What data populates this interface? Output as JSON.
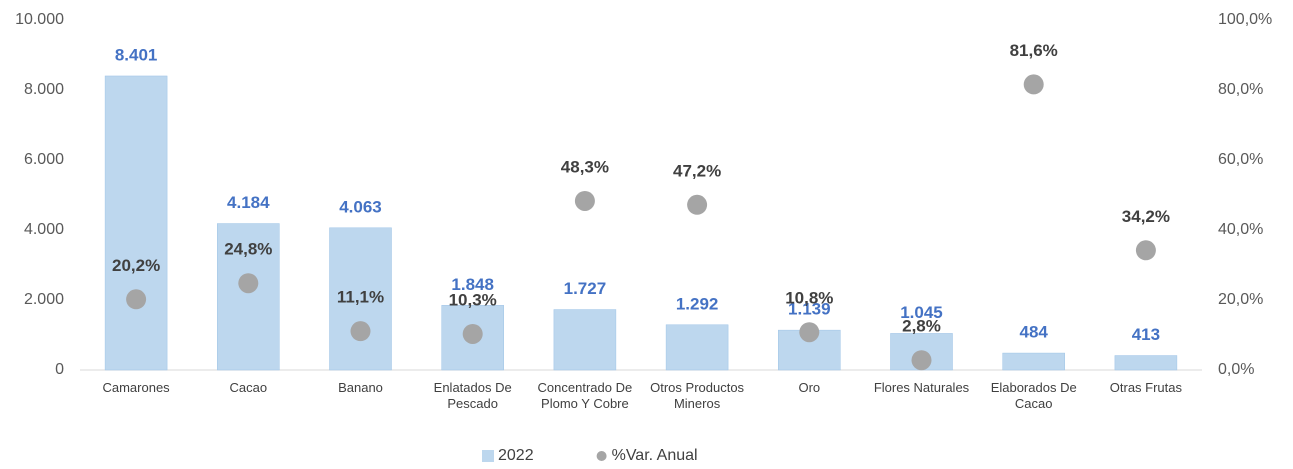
{
  "chart_data": {
    "type": "bar",
    "categories": [
      "Camarones",
      "Cacao",
      "Banano",
      "Enlatados De Pescado",
      "Concentrado De Plomo Y Cobre",
      "Otros Productos Mineros",
      "Oro",
      "Flores Naturales",
      "Elaborados De Cacao",
      "Otras Frutas"
    ],
    "series": [
      {
        "name": "2022",
        "type": "bar",
        "color": "#bdd7ee",
        "label_color": "#4472c4",
        "values": [
          8401,
          4184,
          4063,
          1848,
          1727,
          1292,
          1139,
          1045,
          484,
          413
        ],
        "value_labels": [
          "8.401",
          "4.184",
          "4.063",
          "1.848",
          "1.727",
          "1.292",
          "1.139",
          "1.045",
          "484",
          "413"
        ]
      },
      {
        "name": "%Var. Anual",
        "type": "scatter",
        "axis": "y2",
        "color": "#a5a5a5",
        "label_color": "#404040",
        "values": [
          20.2,
          24.8,
          11.1,
          10.3,
          48.3,
          47.2,
          10.8,
          2.8,
          81.6,
          34.2
        ],
        "value_labels": [
          "20,2%",
          "24,8%",
          "11,1%",
          "10,3%",
          "48,3%",
          "47,2%",
          "10,8%",
          "2,8%",
          "81,6%",
          "34,2%"
        ]
      }
    ],
    "ylim": [
      0,
      10000
    ],
    "yticks": [
      0,
      {
        "value": 2000,
        "label": "2.000"
      },
      {
        "value": 4000,
        "label": "4.000"
      },
      {
        "value": 6000,
        "label": "6.000"
      },
      {
        "value": 8000,
        "label": "8.000"
      },
      {
        "value": 10000,
        "label": "10.000"
      }
    ],
    "y2lim": [
      0,
      100
    ],
    "y2ticks": [
      {
        "value": 0,
        "label": "0,0%"
      },
      {
        "value": 20,
        "label": "20,0%"
      },
      {
        "value": 40,
        "label": "40,0%"
      },
      {
        "value": 60,
        "label": "60,0%"
      },
      {
        "value": 80,
        "label": "80,0%"
      },
      {
        "value": 100,
        "label": "100,0%"
      }
    ],
    "legend": "bottom"
  }
}
